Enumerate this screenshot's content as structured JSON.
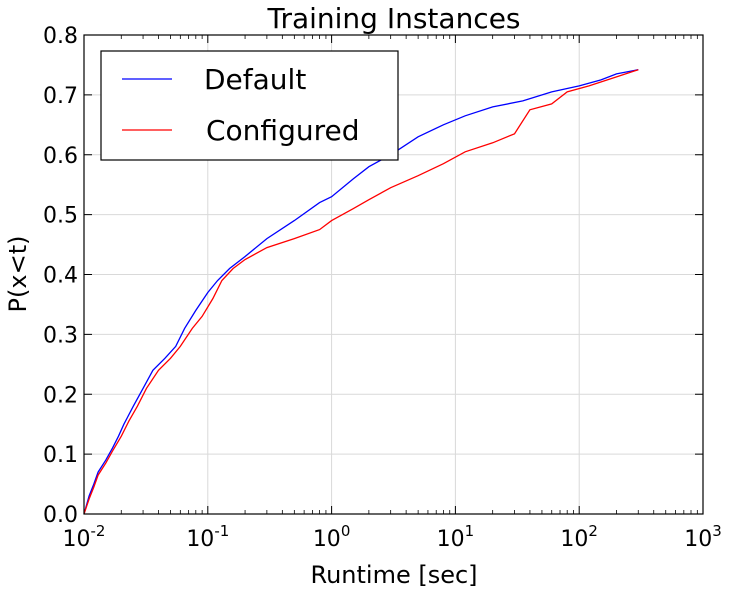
{
  "chart_data": {
    "type": "line",
    "title": "Training Instances",
    "xlabel": "Runtime [sec]",
    "ylabel": "P(x<t)",
    "xscale": "log",
    "xlim": [
      0.01,
      1000
    ],
    "ylim": [
      0.0,
      0.8
    ],
    "grid": true,
    "legend_position": "top-left",
    "x_ticks": [
      {
        "base": "10",
        "exp": "-2",
        "value": 0.01
      },
      {
        "base": "10",
        "exp": "-1",
        "value": 0.1
      },
      {
        "base": "10",
        "exp": "0",
        "value": 1
      },
      {
        "base": "10",
        "exp": "1",
        "value": 10
      },
      {
        "base": "10",
        "exp": "2",
        "value": 100
      },
      {
        "base": "10",
        "exp": "3",
        "value": 1000
      }
    ],
    "y_ticks": [
      "0.0",
      "0.1",
      "0.2",
      "0.3",
      "0.4",
      "0.5",
      "0.6",
      "0.7",
      "0.8"
    ],
    "series": [
      {
        "name": "Default",
        "color": "#0000ff",
        "points": [
          [
            0.01,
            0.0
          ],
          [
            0.011,
            0.03
          ],
          [
            0.012,
            0.05
          ],
          [
            0.013,
            0.07
          ],
          [
            0.015,
            0.09
          ],
          [
            0.017,
            0.11
          ],
          [
            0.019,
            0.13
          ],
          [
            0.021,
            0.15
          ],
          [
            0.025,
            0.18
          ],
          [
            0.03,
            0.21
          ],
          [
            0.036,
            0.24
          ],
          [
            0.045,
            0.26
          ],
          [
            0.055,
            0.28
          ],
          [
            0.065,
            0.31
          ],
          [
            0.08,
            0.34
          ],
          [
            0.1,
            0.37
          ],
          [
            0.12,
            0.39
          ],
          [
            0.15,
            0.41
          ],
          [
            0.2,
            0.43
          ],
          [
            0.3,
            0.46
          ],
          [
            0.5,
            0.49
          ],
          [
            0.8,
            0.52
          ],
          [
            1.0,
            0.53
          ],
          [
            1.5,
            0.56
          ],
          [
            2.0,
            0.58
          ],
          [
            3.0,
            0.6
          ],
          [
            5.0,
            0.63
          ],
          [
            8.0,
            0.65
          ],
          [
            12,
            0.665
          ],
          [
            20,
            0.68
          ],
          [
            35,
            0.69
          ],
          [
            60,
            0.705
          ],
          [
            100,
            0.715
          ],
          [
            150,
            0.725
          ],
          [
            200,
            0.735
          ],
          [
            300,
            0.742
          ]
        ]
      },
      {
        "name": "Configured",
        "color": "#ff0000",
        "points": [
          [
            0.01,
            0.0
          ],
          [
            0.011,
            0.025
          ],
          [
            0.012,
            0.045
          ],
          [
            0.013,
            0.065
          ],
          [
            0.015,
            0.085
          ],
          [
            0.017,
            0.105
          ],
          [
            0.02,
            0.13
          ],
          [
            0.023,
            0.155
          ],
          [
            0.027,
            0.18
          ],
          [
            0.032,
            0.21
          ],
          [
            0.04,
            0.24
          ],
          [
            0.05,
            0.26
          ],
          [
            0.06,
            0.28
          ],
          [
            0.075,
            0.31
          ],
          [
            0.09,
            0.33
          ],
          [
            0.11,
            0.36
          ],
          [
            0.13,
            0.39
          ],
          [
            0.16,
            0.41
          ],
          [
            0.2,
            0.425
          ],
          [
            0.3,
            0.445
          ],
          [
            0.5,
            0.46
          ],
          [
            0.8,
            0.475
          ],
          [
            1.0,
            0.49
          ],
          [
            1.5,
            0.51
          ],
          [
            2.0,
            0.525
          ],
          [
            3.0,
            0.545
          ],
          [
            5.0,
            0.565
          ],
          [
            8.0,
            0.585
          ],
          [
            12,
            0.605
          ],
          [
            20,
            0.62
          ],
          [
            30,
            0.635
          ],
          [
            40,
            0.675
          ],
          [
            60,
            0.685
          ],
          [
            80,
            0.705
          ],
          [
            120,
            0.715
          ],
          [
            200,
            0.73
          ],
          [
            300,
            0.742
          ]
        ]
      }
    ]
  }
}
